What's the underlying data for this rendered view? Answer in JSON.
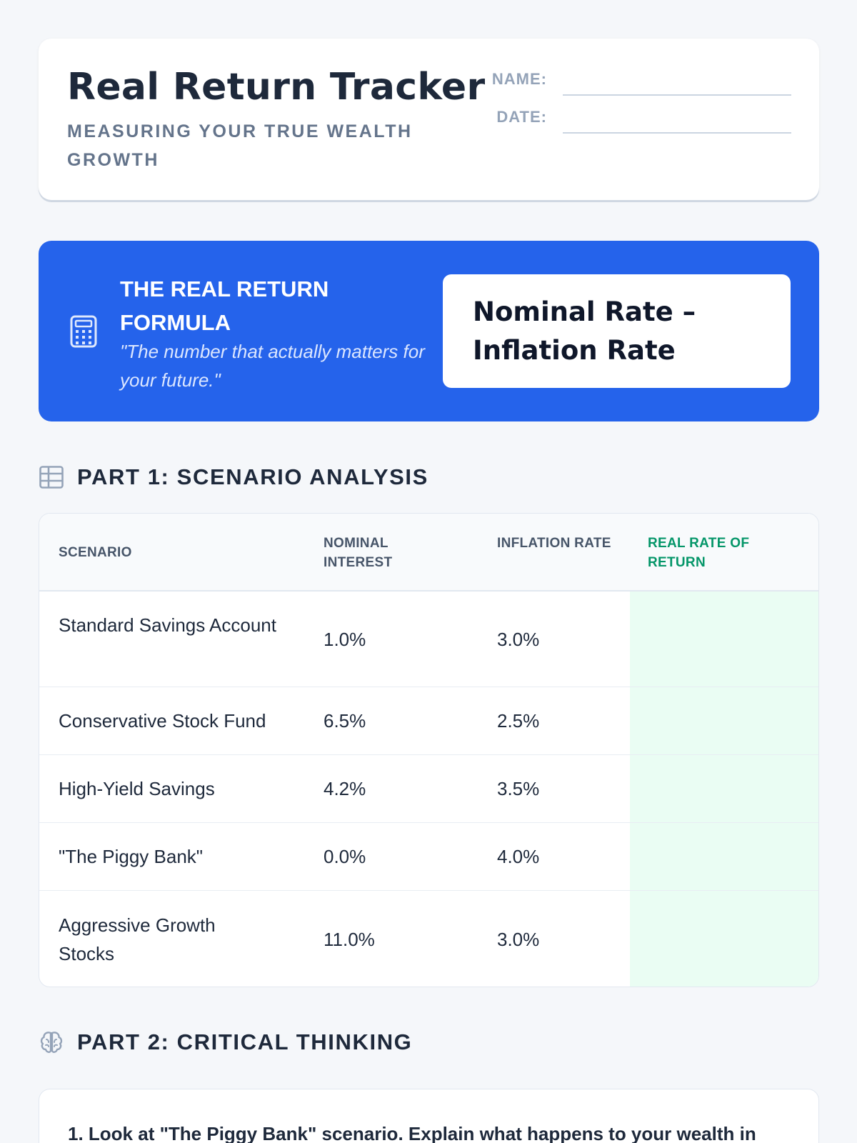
{
  "header": {
    "title": "Real Return Tracker",
    "subtitle": "MEASURING YOUR TRUE WEALTH GROWTH",
    "name_label": "NAME:",
    "date_label": "DATE:"
  },
  "formula": {
    "icon": "calculator-icon",
    "title": "THE REAL RETURN FORMULA",
    "quote": "\"The number that actually matters for your future.\"",
    "expression": "Nominal Rate – Inflation Rate"
  },
  "part1": {
    "icon": "table-icon",
    "heading": "PART 1: SCENARIO ANALYSIS",
    "columns": [
      "SCENARIO",
      "NOMINAL INTEREST",
      "INFLATION RATE",
      "REAL RATE OF RETURN"
    ],
    "rows": [
      {
        "scenario": "Standard Savings Account",
        "nominal": "1.0%",
        "inflation": "3.0%",
        "real": ""
      },
      {
        "scenario": "Conservative Stock Fund",
        "nominal": "6.5%",
        "inflation": "2.5%",
        "real": ""
      },
      {
        "scenario": "High-Yield Savings",
        "nominal": "4.2%",
        "inflation": "3.5%",
        "real": ""
      },
      {
        "scenario": "\"The Piggy Bank\"",
        "nominal": "0.0%",
        "inflation": "4.0%",
        "real": ""
      },
      {
        "scenario": "Aggressive Growth Stocks",
        "nominal": "11.0%",
        "inflation": "3.0%",
        "real": ""
      }
    ]
  },
  "part2": {
    "icon": "brain-icon",
    "heading": "PART 2: CRITICAL THINKING",
    "question_1": "1. Look at \"The Piggy Bank\" scenario. Explain what happens to your wealth in"
  },
  "colors": {
    "accent": "#2563eb",
    "real_column_bg": "#eafdf3",
    "real_header": "#059669",
    "page_bg": "#f5f7fa"
  }
}
